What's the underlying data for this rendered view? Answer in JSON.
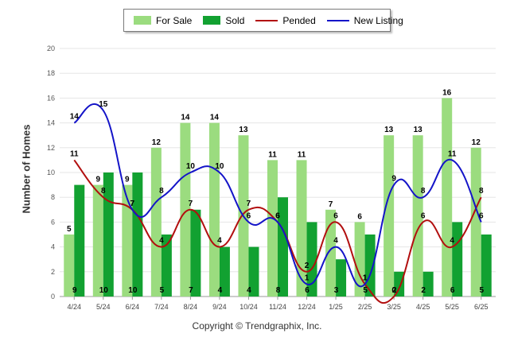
{
  "footer": "Copyright © Trendgraphix, Inc.",
  "legend": [
    {
      "label": "For Sale",
      "color": "#9bdc7f",
      "kind": "bar"
    },
    {
      "label": "Sold",
      "color": "#12a131",
      "kind": "bar"
    },
    {
      "label": "Pended",
      "color": "#b20f0f",
      "kind": "line"
    },
    {
      "label": "New Listing",
      "color": "#1414c8",
      "kind": "line"
    }
  ],
  "chart_data": {
    "type": "bar",
    "ylabel": "Number of Homes",
    "xlabel": "",
    "ylim": [
      0,
      20
    ],
    "yticks": [
      0,
      2,
      4,
      6,
      8,
      10,
      12,
      14,
      16,
      18,
      20
    ],
    "grid": true,
    "legend_position": "top",
    "categories": [
      "4/24",
      "5/24",
      "6/24",
      "7/24",
      "8/24",
      "9/24",
      "10/24",
      "11/24",
      "12/24",
      "1/25",
      "2/25",
      "3/25",
      "4/25",
      "5/25",
      "6/25"
    ],
    "series": [
      {
        "name": "For Sale",
        "kind": "bar",
        "color": "#9bdc7f",
        "values": [
          5,
          9,
          9,
          12,
          14,
          14,
          13,
          11,
          11,
          7,
          6,
          13,
          13,
          16,
          12
        ]
      },
      {
        "name": "Sold",
        "kind": "bar",
        "color": "#12a131",
        "values": [
          9,
          10,
          10,
          5,
          7,
          4,
          4,
          8,
          6,
          3,
          5,
          2,
          2,
          6,
          5
        ]
      },
      {
        "name": "Pended",
        "kind": "line",
        "color": "#b20f0f",
        "values": [
          11,
          8,
          7,
          4,
          7,
          4,
          7,
          6,
          2,
          6,
          1,
          0,
          6,
          4,
          8
        ]
      },
      {
        "name": "New Listing",
        "kind": "line",
        "color": "#1414c8",
        "values": [
          14,
          15,
          7,
          8,
          10,
          10,
          6,
          6,
          1,
          4,
          1,
          9,
          8,
          11,
          6
        ]
      }
    ]
  }
}
